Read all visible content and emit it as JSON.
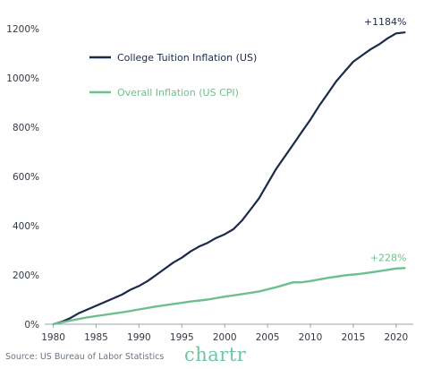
{
  "chart_data": {
    "type": "line",
    "title": "",
    "xlabel": "",
    "ylabel": "",
    "xlim": [
      1979,
      2022
    ],
    "ylim": [
      0,
      1250
    ],
    "x_ticks": [
      1980,
      1985,
      1990,
      1995,
      2000,
      2005,
      2010,
      2015,
      2020
    ],
    "y_ticks": [
      0,
      200,
      400,
      600,
      800,
      1000,
      1200
    ],
    "y_tick_suffix": "%",
    "grid": false,
    "legend_position": "top-left",
    "series": [
      {
        "name": "College Tuition Inflation (US)",
        "color": "#1b2a4a",
        "end_label": "+1184%",
        "x": [
          1980,
          1981,
          1982,
          1983,
          1984,
          1985,
          1986,
          1987,
          1988,
          1989,
          1990,
          1991,
          1992,
          1993,
          1994,
          1995,
          1996,
          1997,
          1998,
          1999,
          2000,
          2001,
          2002,
          2003,
          2004,
          2005,
          2006,
          2007,
          2008,
          2009,
          2010,
          2011,
          2012,
          2013,
          2014,
          2015,
          2016,
          2017,
          2018,
          2019,
          2020,
          2021
        ],
        "y": [
          0,
          10,
          25,
          45,
          60,
          75,
          90,
          105,
          120,
          140,
          155,
          175,
          200,
          225,
          250,
          270,
          295,
          315,
          330,
          350,
          365,
          385,
          420,
          465,
          510,
          570,
          630,
          680,
          730,
          780,
          830,
          885,
          935,
          985,
          1025,
          1065,
          1090,
          1115,
          1135,
          1160,
          1180,
          1184
        ]
      },
      {
        "name": "Overall Inflation (US CPI)",
        "color": "#6dbf8e",
        "end_label": "+228%",
        "x": [
          1980,
          1982,
          1984,
          1986,
          1988,
          1990,
          1992,
          1994,
          1996,
          1998,
          2000,
          2002,
          2004,
          2006,
          2008,
          2009,
          2010,
          2012,
          2014,
          2016,
          2018,
          2020,
          2021
        ],
        "y": [
          0,
          15,
          28,
          38,
          48,
          60,
          72,
          82,
          92,
          100,
          112,
          122,
          133,
          150,
          170,
          170,
          175,
          188,
          198,
          205,
          215,
          226,
          228
        ]
      }
    ]
  },
  "footer": {
    "source": "Source: US Bureau of Labor Statistics",
    "brand": "chartr"
  }
}
